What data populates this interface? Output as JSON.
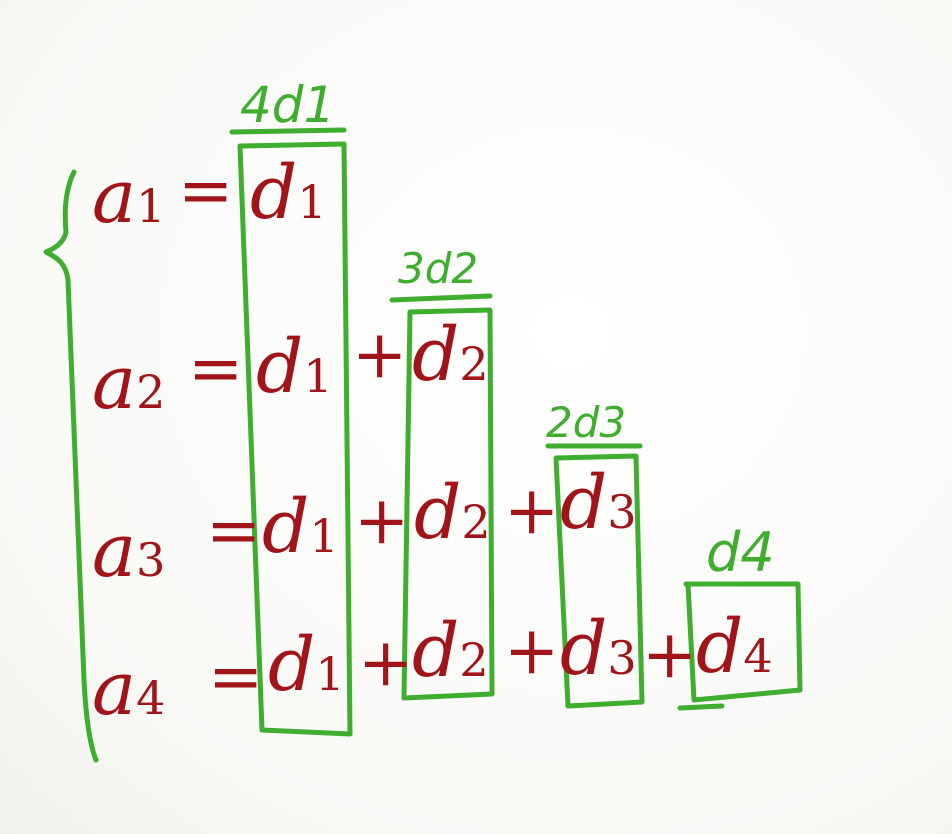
{
  "rows": [
    {
      "lhs": "a",
      "lhs_sub": "1",
      "eq": "=",
      "terms": [
        {
          "base": "d",
          "sub": "1"
        }
      ],
      "plus": []
    },
    {
      "lhs": "a",
      "lhs_sub": "2",
      "eq": "=",
      "terms": [
        {
          "base": "d",
          "sub": "1"
        },
        {
          "base": "d",
          "sub": "2"
        }
      ],
      "plus": [
        "+"
      ]
    },
    {
      "lhs": "a",
      "lhs_sub": "3",
      "eq": "=",
      "terms": [
        {
          "base": "d",
          "sub": "1"
        },
        {
          "base": "d",
          "sub": "2"
        },
        {
          "base": "d",
          "sub": "3"
        }
      ],
      "plus": [
        "+",
        "+"
      ]
    },
    {
      "lhs": "a",
      "lhs_sub": "4",
      "eq": "=",
      "terms": [
        {
          "base": "d",
          "sub": "1"
        },
        {
          "base": "d",
          "sub": "2"
        },
        {
          "base": "d",
          "sub": "3"
        },
        {
          "base": "d",
          "sub": "4"
        }
      ],
      "plus": [
        "+",
        "+",
        "+"
      ]
    }
  ],
  "column_labels": [
    "4d1",
    "3d2",
    "2d3",
    "d4"
  ],
  "colors": {
    "red_ink": "#a1141a",
    "green_ink": "#3fae2f",
    "background": "#fdfdfb"
  }
}
